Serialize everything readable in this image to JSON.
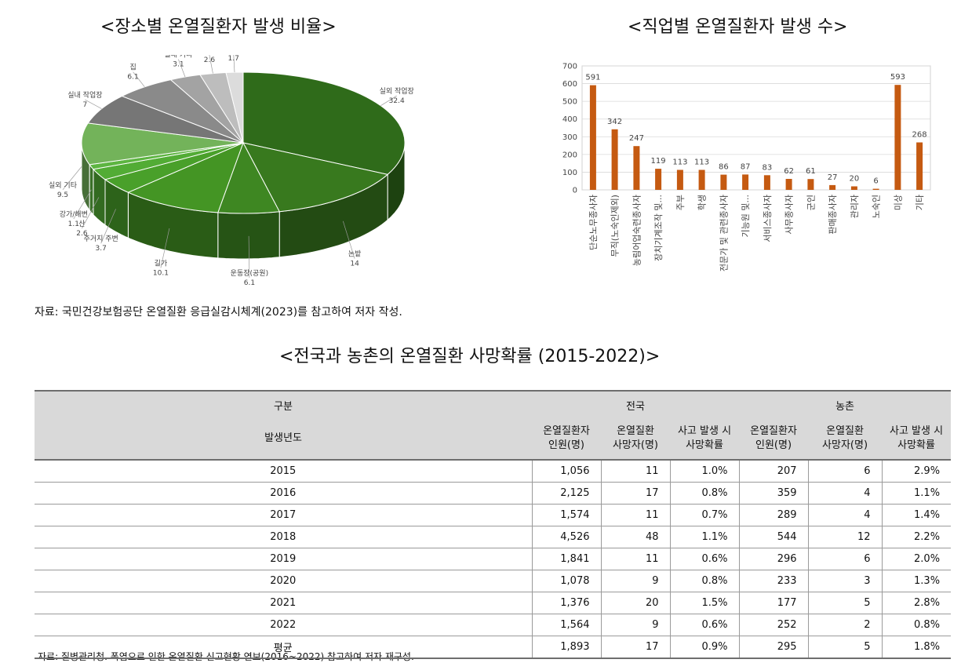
{
  "titles": {
    "pie": "<장소별 온열질환자 발생 비율>",
    "bar": "<직업별 온열질환자 발생 수>",
    "table": "<전국과 농촌의 온열질환 사망확률 (2015-2022)>"
  },
  "sources": {
    "top": "자료: 국민건강보험공단 온열질환 응급실감시체계(2023)를 참고하여 저자 작성.",
    "bottom": "자료: 질병관리청. 폭염으로 인한 온열질환 신고현황 연보(2016~2022) 참고하여 저자 재구성."
  },
  "chart_data": [
    {
      "type": "pie",
      "title": "<장소별 온열질환자 발생 비율>",
      "labels": [
        "실외 작업장",
        "논밭",
        "운동장(공원)",
        "길가",
        "주거지 주변",
        "산",
        "강가/해변",
        "실외 기타",
        "실내 작업장",
        "집",
        "실내 기타",
        "건물",
        "비닐하우스"
      ],
      "values": [
        32.4,
        14,
        6.1,
        10.1,
        3.7,
        2.6,
        1.1,
        9.5,
        7,
        6.1,
        3.1,
        2.6,
        1.7
      ],
      "colors": [
        "#2f6b1a",
        "#38791e",
        "#3e8722",
        "#449524",
        "#49a02a",
        "#52ac35",
        "#5db541",
        "#73b35a",
        "#767676",
        "#8a8a8a",
        "#a3a3a3",
        "#bdbdbd",
        "#dcdcdc"
      ]
    },
    {
      "type": "bar",
      "title": "<직업별 온열질환자 발생 수>",
      "categories": [
        "단순노무종사자",
        "무직(노숙인제외)",
        "농림어업숙련종사자",
        "장치기계조작 및...",
        "주부",
        "학생",
        "전문가 및 관련종사자",
        "기능원 및...",
        "서비스종사자",
        "사무종사자",
        "군인",
        "판매종사자",
        "관리자",
        "노숙인",
        "미상",
        "기타"
      ],
      "values": [
        591,
        342,
        247,
        119,
        113,
        113,
        86,
        87,
        83,
        62,
        61,
        27,
        20,
        6,
        593,
        268
      ],
      "ylim": [
        0,
        700
      ],
      "yticks": [
        "0",
        "100",
        "200",
        "300",
        "400",
        "500",
        "600",
        "700"
      ],
      "bar_color": "#c55a11",
      "grid": true
    }
  ],
  "table": {
    "header_top": [
      "구분",
      "전국",
      "농촌"
    ],
    "header_left_sub": "발생년도",
    "header_sub": [
      [
        "온열질환자",
        "인원(명)"
      ],
      [
        "온열질환",
        "사망자(명)"
      ],
      [
        "사고 발생 시",
        "사망확률"
      ],
      [
        "온열질환자",
        "인원(명)"
      ],
      [
        "온열질환",
        "사망자(명)"
      ],
      [
        "사고 발생 시",
        "사망확률"
      ]
    ],
    "rows": [
      [
        "2015",
        "1,056",
        "11",
        "1.0%",
        "207",
        "6",
        "2.9%"
      ],
      [
        "2016",
        "2,125",
        "17",
        "0.8%",
        "359",
        "4",
        "1.1%"
      ],
      [
        "2017",
        "1,574",
        "11",
        "0.7%",
        "289",
        "4",
        "1.4%"
      ],
      [
        "2018",
        "4,526",
        "48",
        "1.1%",
        "544",
        "12",
        "2.2%"
      ],
      [
        "2019",
        "1,841",
        "11",
        "0.6%",
        "296",
        "6",
        "2.0%"
      ],
      [
        "2020",
        "1,078",
        "9",
        "0.8%",
        "233",
        "3",
        "1.3%"
      ],
      [
        "2021",
        "1,376",
        "20",
        "1.5%",
        "177",
        "5",
        "2.8%"
      ],
      [
        "2022",
        "1,564",
        "9",
        "0.6%",
        "252",
        "2",
        "0.8%"
      ],
      [
        "평균",
        "1,893",
        "17",
        "0.9%",
        "295",
        "5",
        "1.8%"
      ]
    ]
  }
}
